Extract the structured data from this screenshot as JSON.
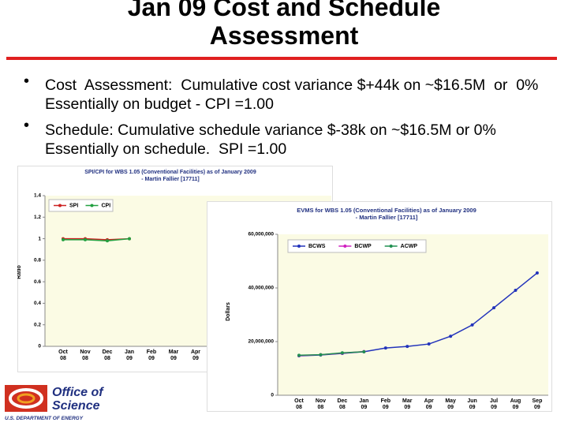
{
  "title": "Jan 09 Cost and Schedule Assessment",
  "bullets": [
    "Cost  Assessment:  Cumulative cost variance $+44k on ~$16.5M  or  0% Essentially on budget - CPI =1.00",
    "Schedule: Cumulative schedule variance $-38k on ~$16.5M or 0% Essentially on schedule.  SPI =1.00"
  ],
  "logo": {
    "line1": "Office of",
    "line2": "Science",
    "org": "U.S. DEPARTMENT OF ENERGY"
  },
  "chart_data": [
    {
      "type": "line",
      "title": "SPI/CPI for WBS 1.05 (Conventional Facilities) as of January 2009",
      "subtitle": "- Martin Fallier [17711]",
      "y_label": "Ratio",
      "categories": [
        "Oct 08",
        "Nov 08",
        "Dec 08",
        "Jan 09",
        "Feb 09",
        "Mar 09",
        "Apr 09"
      ],
      "series": [
        {
          "name": "SPI",
          "color": "#cc2222",
          "values": [
            1.0,
            1.0,
            0.99,
            1.0,
            null,
            null,
            null
          ]
        },
        {
          "name": "CPI",
          "color": "#22a040",
          "values": [
            0.99,
            0.99,
            0.98,
            1.0,
            null,
            null,
            null
          ]
        }
      ],
      "ylim": [
        0,
        1.4
      ],
      "yticks": [
        0,
        0.2,
        0.4,
        0.6,
        0.8,
        1,
        1.2,
        1.4
      ],
      "grid": false
    },
    {
      "type": "line",
      "title": "EVMS for WBS 1.05 (Conventional Facilities) as of January 2009",
      "subtitle": "- Martin Fallier [17711]",
      "y_label": "Dollars",
      "categories": [
        "Oct 08",
        "Nov 08",
        "Dec 08",
        "Jan 09",
        "Feb 09",
        "Mar 09",
        "Apr 09",
        "May 09",
        "Jun 09",
        "Jul 09",
        "Aug 09",
        "Sep 09"
      ],
      "series": [
        {
          "name": "BCWS",
          "color": "#2233bb",
          "values": [
            14700000,
            15000000,
            15600000,
            16200000,
            17600000,
            18200000,
            19100000,
            22000000,
            26200000,
            32600000,
            39100000,
            45600000
          ]
        },
        {
          "name": "BCWP",
          "color": "#d020c0",
          "values": [
            14800000,
            15100000,
            15700000,
            16300000,
            null,
            null,
            null,
            null,
            null,
            null,
            null,
            null
          ]
        },
        {
          "name": "ACWP",
          "color": "#209050",
          "values": [
            14900000,
            15100000,
            15800000,
            16200000,
            null,
            null,
            null,
            null,
            null,
            null,
            null,
            null
          ]
        }
      ],
      "ylim": [
        0,
        60000000
      ],
      "yticks": [
        0,
        {
          "value": 20000000,
          "label": "20,000,000"
        },
        {
          "value": 40000000,
          "label": "40,000,000"
        },
        {
          "value": 60000000,
          "label": "60,000,000"
        }
      ],
      "grid": false
    }
  ]
}
